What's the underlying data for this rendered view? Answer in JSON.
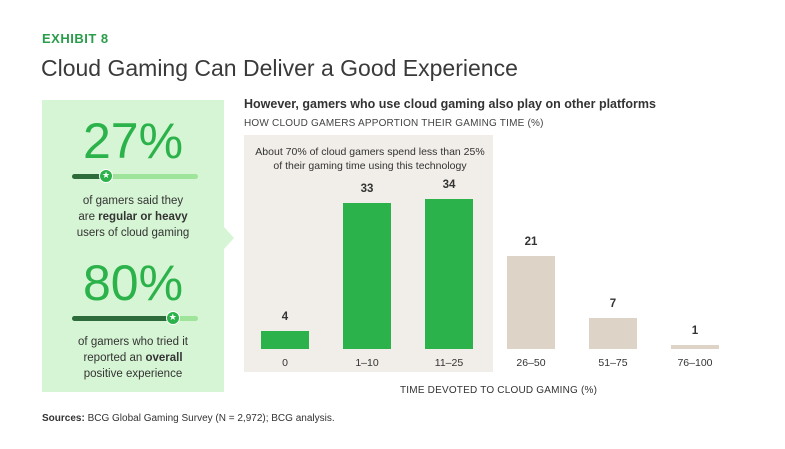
{
  "header": {
    "exhibit": "EXHIBIT 8",
    "title": "Cloud Gaming Can Deliver a Good Experience"
  },
  "callouts": [
    {
      "value": "27%",
      "fraction": 0.27,
      "line1": "of gamers said they",
      "line2_pre": "are ",
      "line2_bold": "regular or heavy",
      "line3": "users of cloud gaming"
    },
    {
      "value": "80%",
      "fraction": 0.8,
      "line1": "of gamers who tried it",
      "line2_pre": "reported an ",
      "line2_bold": "overall",
      "line3": "positive experience"
    }
  ],
  "colors": {
    "green": "#2cb24a",
    "beige": "#ddd3c6",
    "panel": "#d6f5d4"
  },
  "chart_data": {
    "type": "bar",
    "title": "However, gamers who use cloud gaming also play on other platforms",
    "subtitle": "HOW CLOUD GAMERS APPORTION THEIR GAMING TIME (%)",
    "categories": [
      "0",
      "1–10",
      "11–25",
      "26–50",
      "51–75",
      "76–100"
    ],
    "values": [
      4,
      33,
      34,
      21,
      7,
      1
    ],
    "highlighted": [
      true,
      true,
      true,
      false,
      false,
      false
    ],
    "annotation": "About 70% of cloud gamers spend less than 25% of their gaming time using this technology",
    "xlabel": "TIME DEVOTED TO CLOUD GAMING (%)",
    "ylabel": "",
    "ylim": [
      0,
      34
    ]
  },
  "footer": {
    "sources_label": "Sources:",
    "sources_text": " BCG Global Gaming Survey (N = 2,972); BCG analysis."
  }
}
